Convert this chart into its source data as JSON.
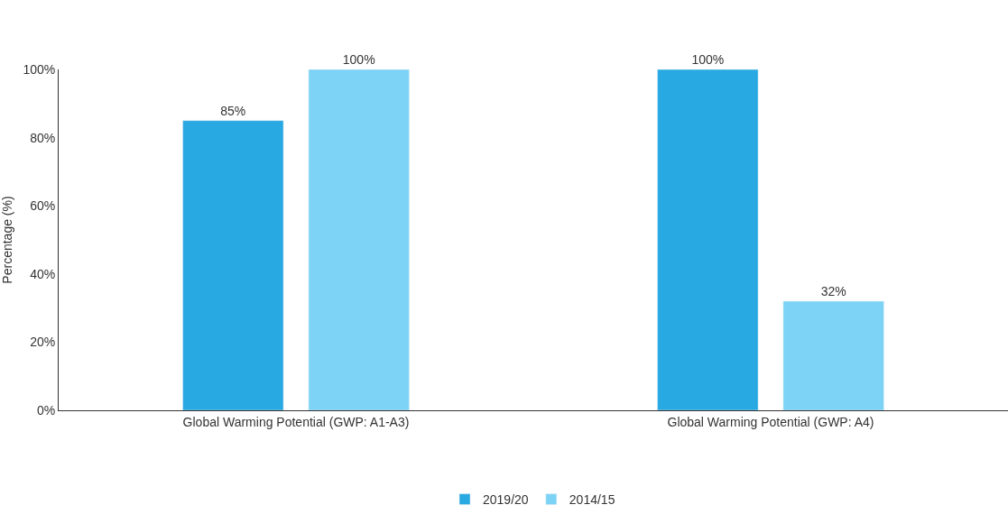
{
  "chart_data": {
    "type": "bar",
    "ylabel": "Percentage (%)",
    "categories": [
      "Global Warming Potential (GWP: A1-A3)",
      "Global Warming Potential (GWP: A4)"
    ],
    "series": [
      {
        "name": "2019/20",
        "color": "#29a9e1",
        "values": [
          85,
          100
        ],
        "value_labels": [
          "85%",
          "100%"
        ]
      },
      {
        "name": "2014/15",
        "color": "#7dd3f5",
        "values": [
          100,
          32
        ],
        "value_labels": [
          "100%",
          "32%"
        ]
      }
    ],
    "ylim": [
      0,
      100
    ],
    "yticks": [
      {
        "value": 0,
        "label": "0%"
      },
      {
        "value": 20,
        "label": "20%"
      },
      {
        "value": 40,
        "label": "40%"
      },
      {
        "value": 60,
        "label": "60%"
      },
      {
        "value": 80,
        "label": "80%"
      },
      {
        "value": 100,
        "label": "100%"
      }
    ],
    "legend": "bottom"
  }
}
